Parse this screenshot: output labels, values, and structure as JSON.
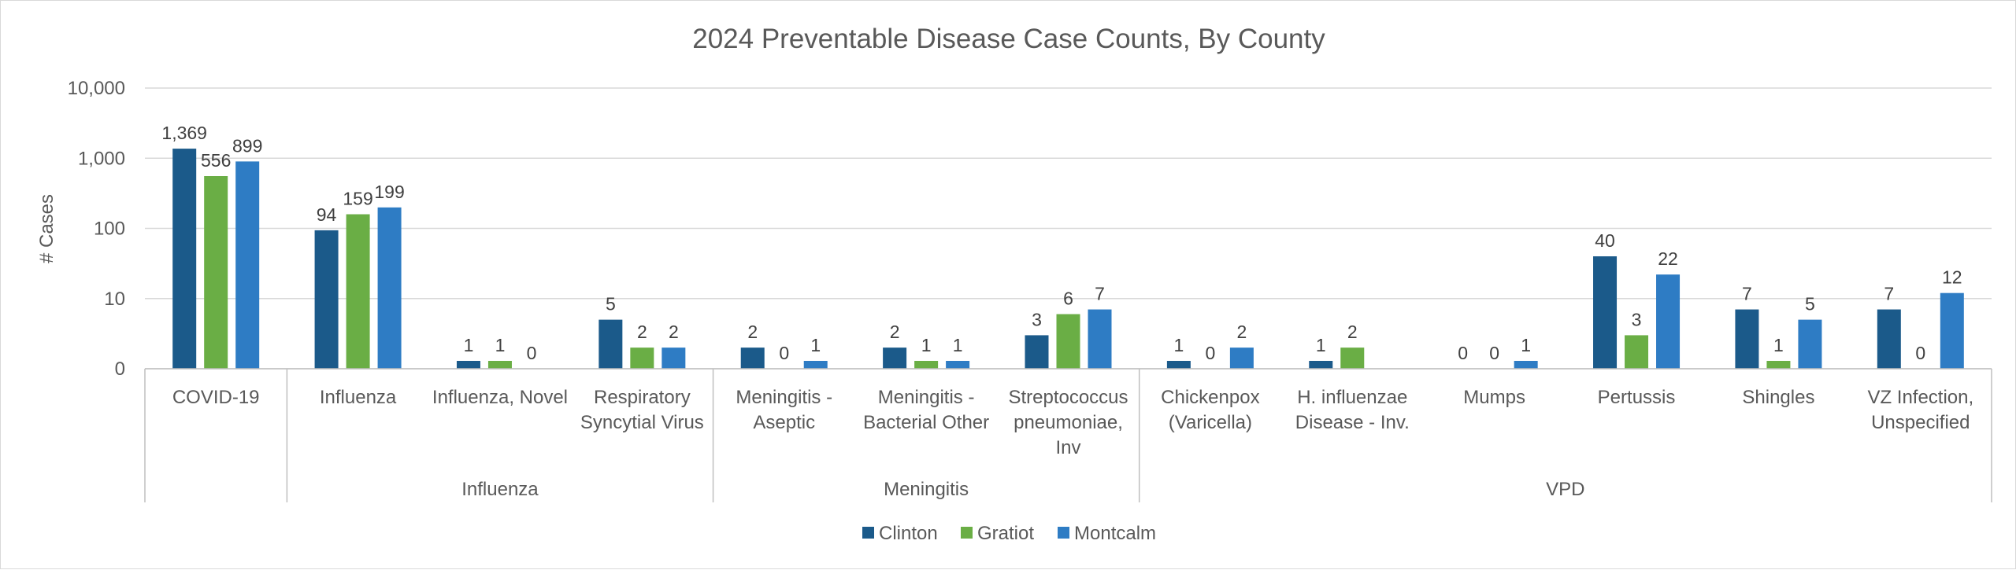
{
  "chart_data": {
    "type": "bar",
    "scale": "log",
    "title": "2024 Preventable Disease Case Counts, By County",
    "ylabel": "# Cases",
    "xlabel": "",
    "yticks": [
      {
        "value": 1,
        "label": "0"
      },
      {
        "value": 10,
        "label": "10"
      },
      {
        "value": 100,
        "label": "100"
      },
      {
        "value": 1000,
        "label": "1,000"
      },
      {
        "value": 10000,
        "label": "10,000"
      }
    ],
    "ylim": [
      1,
      10000
    ],
    "grid": true,
    "legend_position": "bottom",
    "categories": [
      [
        "COVID-19"
      ],
      [
        "Influenza"
      ],
      [
        "Influenza, Novel"
      ],
      [
        "Respiratory",
        "Syncytial Virus"
      ],
      [
        "Meningitis -",
        "Aseptic"
      ],
      [
        "Meningitis -",
        "Bacterial Other"
      ],
      [
        "Streptococcus",
        "pneumoniae,",
        "Inv"
      ],
      [
        "Chickenpox",
        "(Varicella)"
      ],
      [
        "H. influenzae",
        "Disease - Inv."
      ],
      [
        "Mumps"
      ],
      [
        "Pertussis"
      ],
      [
        "Shingles"
      ],
      [
        "VZ Infection,",
        "Unspecified"
      ]
    ],
    "groups": [
      {
        "label": "",
        "start": 0,
        "end": 0
      },
      {
        "label": "Influenza",
        "start": 1,
        "end": 3
      },
      {
        "label": "Meningitis",
        "start": 4,
        "end": 6
      },
      {
        "label": "VPD",
        "start": 7,
        "end": 12
      }
    ],
    "series": [
      {
        "name": "Clinton",
        "color": "#1b5a8a",
        "values": [
          1369,
          94,
          1,
          5,
          2,
          2,
          3,
          1,
          1,
          0,
          40,
          7,
          7
        ],
        "labels": [
          "1,369",
          "94",
          "1",
          "5",
          "2",
          "2",
          "3",
          "1",
          "1",
          "0",
          "40",
          "7",
          "7"
        ]
      },
      {
        "name": "Gratiot",
        "color": "#6aae45",
        "values": [
          556,
          159,
          1,
          2,
          0,
          1,
          6,
          0,
          2,
          0,
          3,
          1,
          0
        ],
        "labels": [
          "556",
          "159",
          "1",
          "2",
          "0",
          "1",
          "6",
          "0",
          "2",
          "0",
          "3",
          "1",
          "0"
        ]
      },
      {
        "name": "Montcalm",
        "color": "#2e7cc4",
        "values": [
          899,
          199,
          null,
          2,
          1,
          1,
          7,
          2,
          null,
          1,
          22,
          5,
          12
        ],
        "labels": [
          "899",
          "199",
          "0",
          "2",
          "1",
          "1",
          "7",
          "2",
          "",
          "1",
          "22",
          "5",
          "12"
        ]
      }
    ]
  }
}
